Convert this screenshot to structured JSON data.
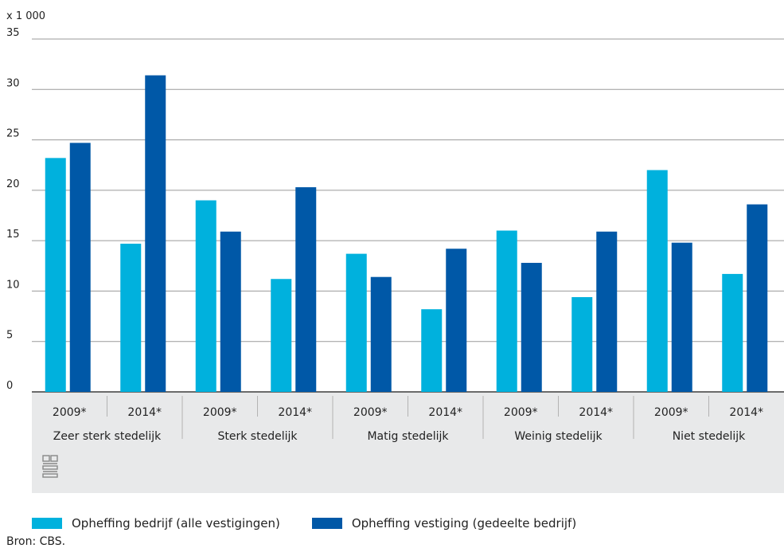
{
  "chart_data": {
    "type": "bar",
    "unit_label": "x 1 000",
    "ylim": [
      0,
      35
    ],
    "yticks": [
      0,
      5,
      10,
      15,
      20,
      25,
      30,
      35
    ],
    "grid": true,
    "legend_position": "bottom-left",
    "groups": [
      "Zeer sterk stedelijk",
      "Sterk stedelijk",
      "Matig stedelijk",
      "Weinig stedelijk",
      "Niet stedelijk"
    ],
    "years": [
      "2009*",
      "2014*"
    ],
    "categories": [
      "2009* Zeer sterk stedelijk",
      "2014* Zeer sterk stedelijk",
      "2009* Sterk stedelijk",
      "2014* Sterk stedelijk",
      "2009* Matig stedelijk",
      "2014* Matig stedelijk",
      "2009* Weinig stedelijk",
      "2014* Weinig stedelijk",
      "2009* Niet stedelijk",
      "2014* Niet stedelijk"
    ],
    "series": [
      {
        "name": "Opheffing bedrijf (alle vestigingen)",
        "color": "#00b1dd",
        "values": [
          23.2,
          14.7,
          19.0,
          11.2,
          13.7,
          8.2,
          16.0,
          9.4,
          22.0,
          11.7
        ]
      },
      {
        "name": "Opheffing vestiging (gedeelte bedrijf)",
        "color": "#0058a7",
        "values": [
          24.7,
          31.4,
          15.9,
          20.3,
          11.4,
          14.2,
          12.8,
          15.9,
          14.8,
          18.6
        ]
      }
    ]
  },
  "source": "Bron: CBS.",
  "logo_icon": "cbs-logo-icon"
}
